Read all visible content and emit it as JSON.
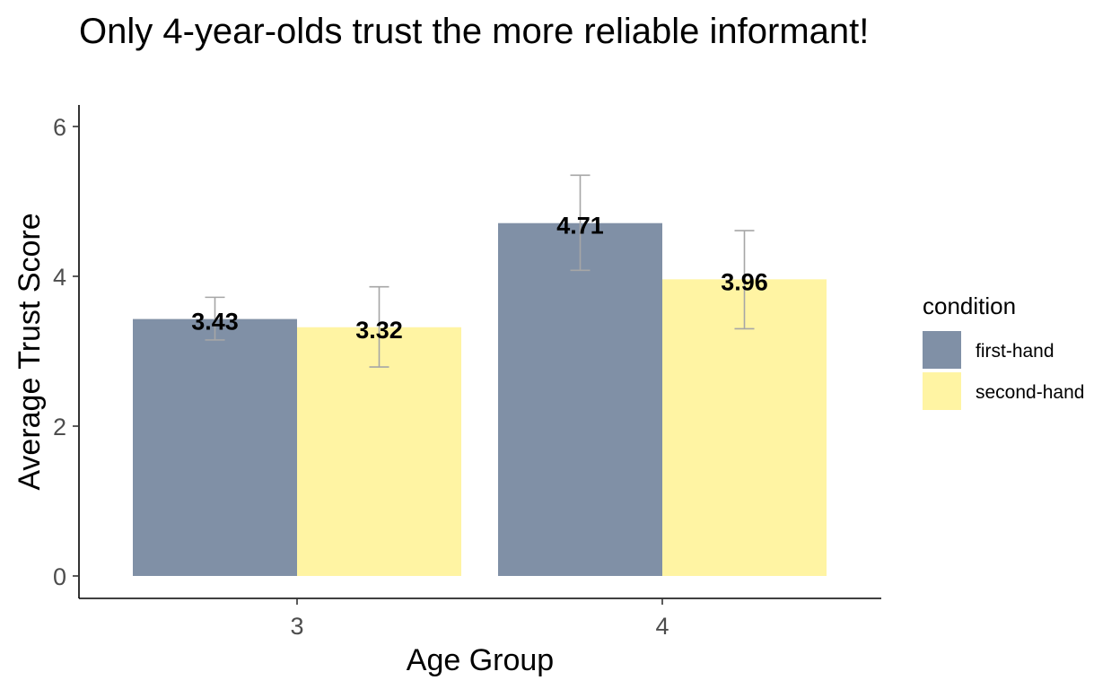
{
  "chart_data": {
    "type": "bar",
    "title": "Only 4-year-olds trust the more reliable informant!",
    "xlabel": "Age Group",
    "ylabel": "Average Trust Score",
    "categories": [
      "3",
      "4"
    ],
    "ylim": [
      0,
      6.3
    ],
    "yticks": [
      "0",
      "2",
      "4",
      "6"
    ],
    "legend_title": "condition",
    "legend_position": "right",
    "grid": false,
    "series": [
      {
        "name": "first-hand",
        "color": "#8090a6",
        "values": [
          3.43,
          4.71
        ],
        "labels": [
          "3.43",
          "4.71"
        ],
        "error_low": [
          3.15,
          4.08
        ],
        "error_high": [
          3.72,
          5.35
        ]
      },
      {
        "name": "second-hand",
        "color": "#fff4a3",
        "values": [
          3.32,
          3.96
        ],
        "labels": [
          "3.32",
          "3.96"
        ],
        "error_low": [
          2.79,
          3.3
        ],
        "error_high": [
          3.86,
          4.61
        ]
      }
    ]
  }
}
